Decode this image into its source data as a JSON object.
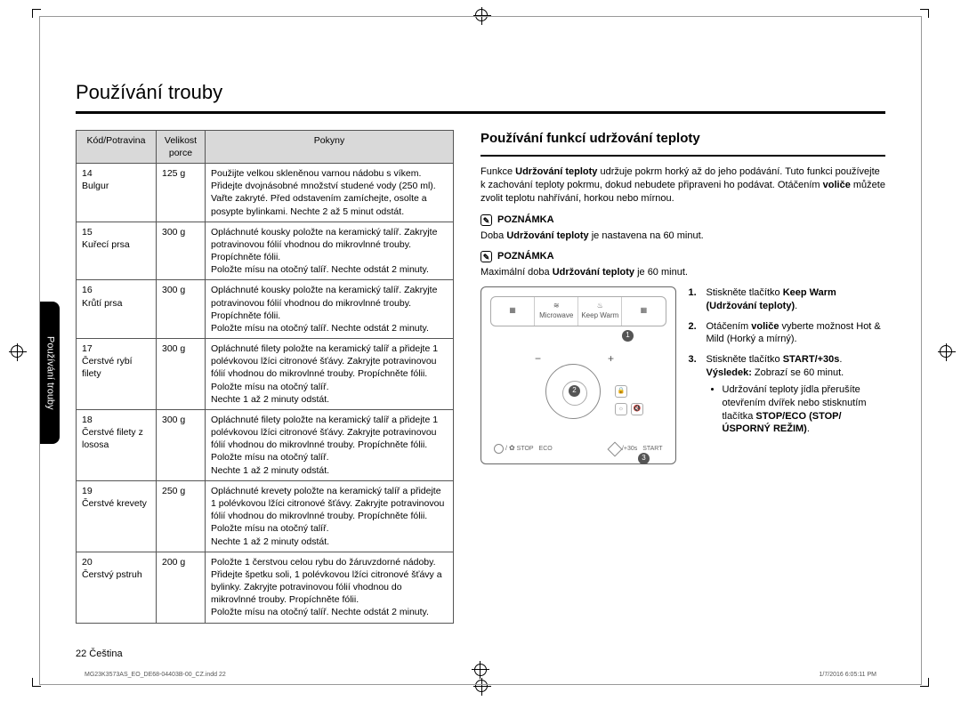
{
  "title": "Používání trouby",
  "side_tab": "Používání trouby",
  "page_label": "22   Čeština",
  "footer_left": "MG23K3573AS_EO_DE68-04403B-00_CZ.indd   22",
  "footer_right": "1/7/2016   6:05:11 PM",
  "table": {
    "headers": {
      "code": "Kód/Potravina",
      "size": "Velikost porce",
      "instr": "Pokyny"
    },
    "rows": [
      {
        "code": "14\nBulgur",
        "size": "125 g",
        "instr": "Použijte velkou skleněnou varnou nádobu s víkem. Přidejte dvojnásobné množství studené vody (250 ml). Vařte zakryté. Před odstavením zamíchejte, osolte a posypte bylinkami. Nechte 2 až 5 minut odstát."
      },
      {
        "code": "15\nKuřecí prsa",
        "size": "300 g",
        "instr": "Opláchnuté kousky položte na keramický talíř. Zakryjte potravinovou fólií vhodnou do mikrovlnné trouby. Propíchněte fólii.\nPoložte mísu na otočný talíř. Nechte odstát 2 minuty."
      },
      {
        "code": "16\nKrůtí prsa",
        "size": "300 g",
        "instr": "Opláchnuté kousky položte na keramický talíř. Zakryjte potravinovou fólií vhodnou do mikrovlnné trouby. Propíchněte fólii.\nPoložte mísu na otočný talíř. Nechte odstát 2 minuty."
      },
      {
        "code": "17\nČerstvé rybí filety",
        "size": "300 g",
        "instr": "Opláchnuté filety položte na keramický talíř a přidejte 1 polévkovou lžíci citronové šťávy. Zakryjte potravinovou fólií vhodnou do mikrovlnné trouby. Propíchněte fólii. Položte mísu na otočný talíř.\nNechte 1 až 2 minuty odstát."
      },
      {
        "code": "18\nČerstvé filety z lososa",
        "size": "300 g",
        "instr": "Opláchnuté filety položte na keramický talíř a přidejte 1 polévkovou lžíci citronové šťávy. Zakryjte potravinovou fólií vhodnou do mikrovlnné trouby. Propíchněte fólii. Položte mísu na otočný talíř.\nNechte 1 až 2 minuty odstát."
      },
      {
        "code": "19\nČerstvé krevety",
        "size": "250 g",
        "instr": "Opláchnuté krevety položte na keramický talíř a přidejte 1 polévkovou lžíci citronové šťávy. Zakryjte potravinovou fólií vhodnou do mikrovlnné trouby. Propíchněte fólii. Položte mísu na otočný talíř.\nNechte 1 až 2 minuty odstát."
      },
      {
        "code": "20\nČerstvý pstruh",
        "size": "200 g",
        "instr": "Položte 1 čerstvou celou rybu do žáruvzdorné nádoby. Přidejte špetku soli, 1 polévkovou lžíci citronové šťávy a bylinky. Zakryjte potravinovou fólií vhodnou do mikrovlnné trouby. Propíchněte fólii.\nPoložte mísu na otočný talíř. Nechte odstát 2 minuty."
      }
    ]
  },
  "right": {
    "subtitle": "Používání funkcí udržování teploty",
    "intro_parts": {
      "p1a": "Funkce ",
      "p1b": "Udržování teploty",
      "p1c": " udržuje pokrm horký až do jeho podávání. Tuto funkci používejte k zachování teploty pokrmu, dokud nebudete připraveni ho podávat. Otáčením ",
      "p1d": "voliče",
      "p1e": " můžete zvolit teplotu nahřívání, horkou nebo mírnou."
    },
    "note_label": "POZNÁMKA",
    "note1": {
      "a": "Doba ",
      "b": "Udržování teploty",
      "c": " je nastavena na 60 minut."
    },
    "note2": {
      "a": "Maximální doba ",
      "b": "Udržování teploty",
      "c": " je 60 minut."
    },
    "panel": {
      "microwave": "Microwave",
      "keepwarm": "Keep Warm",
      "start": "START",
      "stop": "STOP",
      "eco": "ECO",
      "plus30": "/+30s"
    },
    "steps": {
      "s1a": "Stiskněte tlačítko ",
      "s1b": "Keep Warm (Udržování teploty)",
      "s1c": ".",
      "s2a": "Otáčením ",
      "s2b": "voliče",
      "s2c": " vyberte možnost Hot & Mild (Horký a mírný).",
      "s3a": "Stiskněte tlačítko ",
      "s3b": "START/+30s",
      "s3c": ".",
      "s3res_a": "Výsledek:",
      "s3res_b": " Zobrazí se 60 minut.",
      "s3bullet_a": "Udržování teploty jídla přerušíte otevřením dvířek nebo stisknutím tlačítka ",
      "s3bullet_b": "STOP/ECO (STOP/ÚSPORNÝ REŽIM)",
      "s3bullet_c": "."
    }
  }
}
